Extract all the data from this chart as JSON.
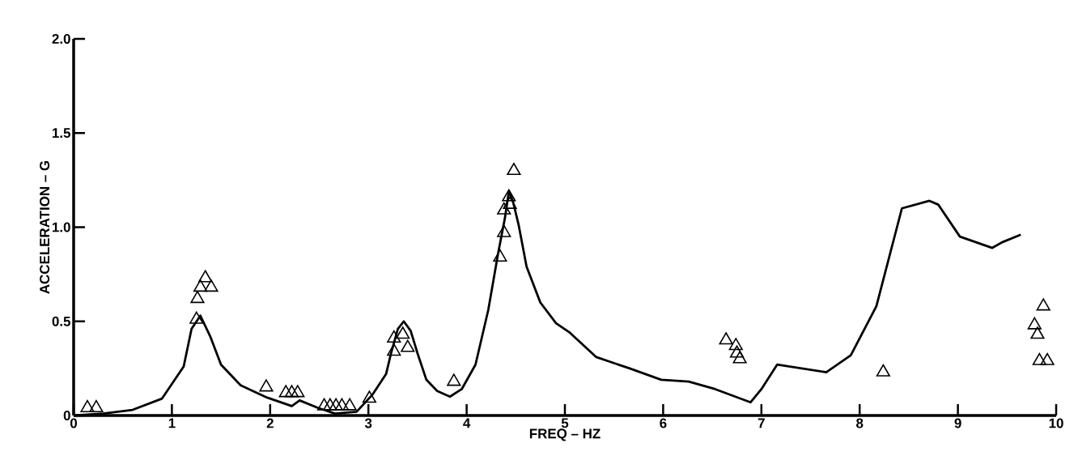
{
  "chart_data": {
    "type": "line",
    "xlabel": "FREQ – HZ",
    "ylabel": "ACCELERATION – G",
    "xlim": [
      0,
      10
    ],
    "ylim": [
      0,
      2.0
    ],
    "xticks": [
      0,
      1,
      2,
      3,
      4,
      5,
      6,
      7,
      8,
      9,
      10
    ],
    "yticks": [
      0,
      {
        "value": 0.5,
        "label": "0.5"
      },
      {
        "value": 1,
        "label": "1.0"
      },
      {
        "value": 1.5,
        "label": "1.5"
      },
      {
        "value": 2,
        "label": "2.0"
      }
    ],
    "series": [
      {
        "color": "#000000",
        "marker": "none",
        "line_style": "solid",
        "x": [
          0,
          0.3,
          0.6,
          0.9,
          1.12,
          1.2,
          1.29,
          1.39,
          1.5,
          1.7,
          1.97,
          2.22,
          2.3,
          2.49,
          2.66,
          2.88,
          3.04,
          3.18,
          3.23,
          3.3,
          3.36,
          3.43,
          3.5,
          3.59,
          3.7,
          3.83,
          3.95,
          4.09,
          4.22,
          4.32,
          4.39,
          4.43,
          4.47,
          4.53,
          4.61,
          4.75,
          4.91,
          5.05,
          5.32,
          5.66,
          5.98,
          6.26,
          6.53,
          6.89,
          7.0,
          7.16,
          7.66,
          7.91,
          8.17,
          8.43,
          8.71,
          8.8,
          9.02,
          9.35,
          9.45,
          9.64
        ],
        "values": [
          0,
          0.01,
          0.03,
          0.09,
          0.26,
          0.46,
          0.53,
          0.42,
          0.27,
          0.16,
          0.095,
          0.05,
          0.08,
          0.04,
          0.01,
          0.02,
          0.11,
          0.22,
          0.33,
          0.46,
          0.5,
          0.45,
          0.33,
          0.19,
          0.13,
          0.1,
          0.14,
          0.27,
          0.56,
          0.86,
          1.05,
          1.19,
          1.14,
          1.01,
          0.79,
          0.6,
          0.49,
          0.44,
          0.31,
          0.25,
          0.19,
          0.18,
          0.14,
          0.07,
          0.14,
          0.27,
          0.23,
          0.32,
          0.58,
          1.1,
          1.14,
          1.12,
          0.95,
          0.89,
          0.92,
          0.96
        ]
      },
      {
        "type": "scatter",
        "color": "#000000",
        "marker": "triangle",
        "x": [
          0.14,
          0.23,
          1.25,
          1.26,
          1.29,
          1.34,
          1.4,
          1.96,
          2.16,
          2.22,
          2.28,
          2.55,
          2.61,
          2.67,
          2.73,
          2.81,
          3.01,
          3.26,
          3.26,
          3.35,
          3.4,
          3.87,
          4.34,
          4.38,
          4.38,
          4.44,
          4.43,
          4.48,
          6.64,
          6.74,
          6.75,
          6.78,
          8.24,
          9.87,
          9.78,
          9.81,
          9.83,
          9.91
        ],
        "values": [
          0.04,
          0.04,
          0.51,
          0.62,
          0.68,
          0.73,
          0.68,
          0.15,
          0.12,
          0.12,
          0.12,
          0.05,
          0.05,
          0.05,
          0.05,
          0.05,
          0.09,
          0.34,
          0.41,
          0.43,
          0.36,
          0.18,
          0.84,
          0.97,
          1.09,
          1.12,
          1.16,
          1.3,
          0.4,
          0.37,
          0.33,
          0.3,
          0.23,
          0.58,
          0.48,
          0.43,
          0.29,
          0.29
        ]
      }
    ]
  }
}
